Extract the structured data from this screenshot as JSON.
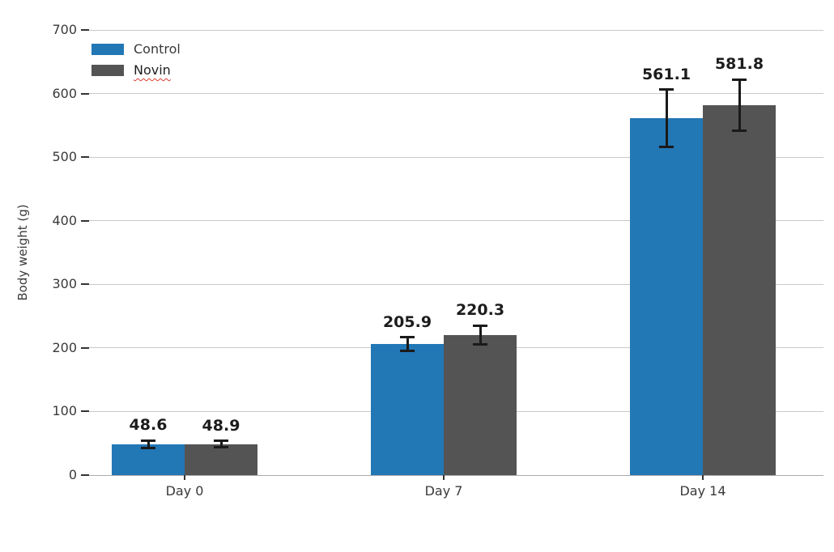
{
  "chart_data": {
    "type": "bar",
    "title": "",
    "xlabel": "",
    "ylabel": "Body weight (g)",
    "categories": [
      "Day 0",
      "Day 7",
      "Day 14"
    ],
    "series": [
      {
        "name": "Control",
        "color": "#2277b5",
        "values": [
          48.6,
          205.9,
          561.1
        ],
        "errors": [
          5.5,
          11,
          45
        ]
      },
      {
        "name": "Novin",
        "color": "#545454",
        "values": [
          48.9,
          220.3,
          581.8
        ],
        "errors": [
          5,
          15,
          40
        ]
      }
    ],
    "value_labels": [
      [
        "48.6",
        "205.9",
        "561.1"
      ],
      [
        "48.9",
        "220.3",
        "581.8"
      ]
    ],
    "y_axis": {
      "min": 0,
      "max": 700,
      "tick_step": 100,
      "ticks": [
        "0",
        "100",
        "200",
        "300",
        "400",
        "500",
        "600",
        "700"
      ]
    },
    "grid": "horizontal",
    "legend_position": "upper-left",
    "error_bars": true
  },
  "annotations": {
    "novin_red_wavy_underline": true
  },
  "colors": {
    "control_bar": "#2277b5",
    "novin_bar": "#545454",
    "gridline": "#c9c9c9",
    "axis_line": "#ababab",
    "tick_mark": "#333333",
    "tick_label_text": "#3a3a3a",
    "value_label_text": "#1c1c1c",
    "error_bar": "#1a1a1a",
    "spellcheck_red": "#e03a2f",
    "background": "#ffffff"
  }
}
